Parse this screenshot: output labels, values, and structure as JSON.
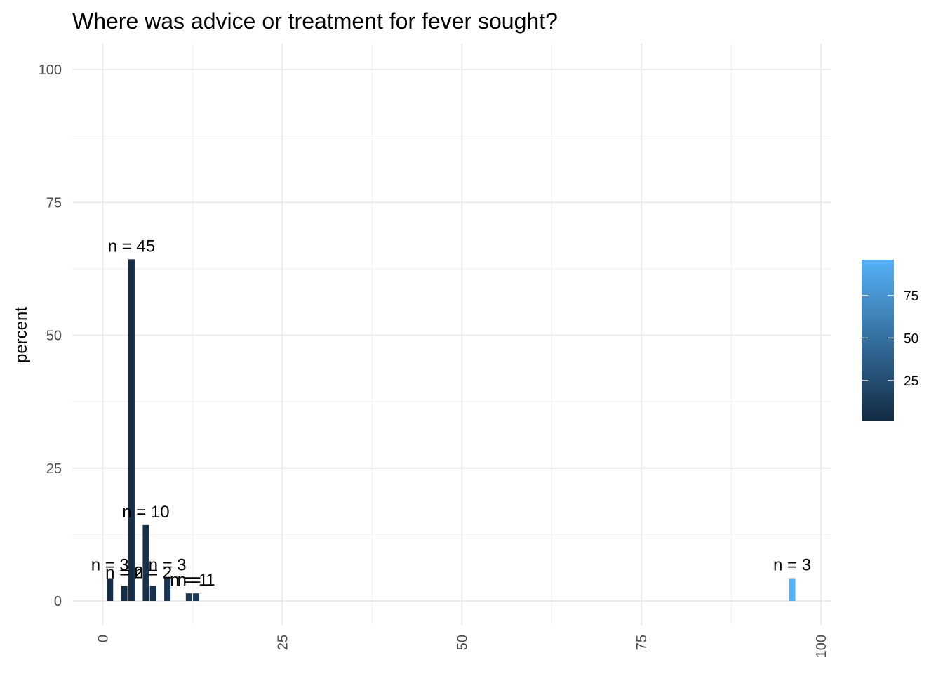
{
  "chart_data": {
    "type": "bar",
    "title": "Where was advice or treatment for fever sought?",
    "xlabel": "",
    "ylabel": "percent",
    "xlim": [
      0,
      100
    ],
    "ylim": [
      0,
      100
    ],
    "x_ticks": [
      0,
      25,
      50,
      75,
      100
    ],
    "y_ticks": [
      0,
      25,
      50,
      75,
      100
    ],
    "grid": true,
    "bars": [
      {
        "x": 1,
        "value": 4.29,
        "label": "n = 3"
      },
      {
        "x": 3,
        "value": 2.86,
        "label": "n = 2"
      },
      {
        "x": 4,
        "value": 64.29,
        "label": "n = 45"
      },
      {
        "x": 6,
        "value": 14.29,
        "label": "n = 10"
      },
      {
        "x": 7,
        "value": 2.86,
        "label": "n = 2"
      },
      {
        "x": 9,
        "value": 4.29,
        "label": "n = 3"
      },
      {
        "x": 12,
        "value": 1.43,
        "label": "n = 1"
      },
      {
        "x": 13,
        "value": 1.43,
        "label": "n = 1"
      },
      {
        "x": 96,
        "value": 4.29,
        "label": "n = 3"
      }
    ],
    "legend": {
      "position": "right",
      "type": "colorbar",
      "low_color": "#132b43",
      "high_color": "#56b1f7",
      "range": [
        1,
        96
      ],
      "breaks": [
        25,
        50,
        75
      ]
    }
  }
}
